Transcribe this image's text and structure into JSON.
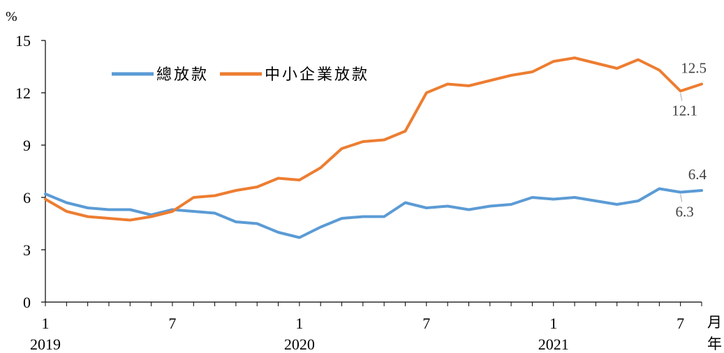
{
  "chart_data": {
    "type": "line",
    "ylabel": "%",
    "ylim": [
      0,
      15
    ],
    "yticks": [
      "0",
      "3",
      "6",
      "9",
      "12",
      "15"
    ],
    "x_month_label": "月",
    "x_year_label": "年",
    "x_month_ticks": [
      {
        "index": 0,
        "label": "1"
      },
      {
        "index": 6,
        "label": "7"
      },
      {
        "index": 12,
        "label": "1"
      },
      {
        "index": 18,
        "label": "7"
      },
      {
        "index": 24,
        "label": "1"
      },
      {
        "index": 30,
        "label": "7"
      }
    ],
    "x_year_ticks": [
      {
        "index": 0,
        "label": "2019"
      },
      {
        "index": 12,
        "label": "2020"
      },
      {
        "index": 24,
        "label": "2021"
      }
    ],
    "legend_position": "top-left",
    "grid": false,
    "x": [
      "2019-01",
      "2019-02",
      "2019-03",
      "2019-04",
      "2019-05",
      "2019-06",
      "2019-07",
      "2019-08",
      "2019-09",
      "2019-10",
      "2019-11",
      "2019-12",
      "2020-01",
      "2020-02",
      "2020-03",
      "2020-04",
      "2020-05",
      "2020-06",
      "2020-07",
      "2020-08",
      "2020-09",
      "2020-10",
      "2020-11",
      "2020-12",
      "2021-01",
      "2021-02",
      "2021-03",
      "2021-04",
      "2021-05",
      "2021-06",
      "2021-07",
      "2021-08"
    ],
    "series": [
      {
        "name": "總放款",
        "color": "#5B9BD5",
        "values": [
          6.2,
          5.7,
          5.4,
          5.3,
          5.3,
          5.0,
          5.3,
          5.2,
          5.1,
          4.6,
          4.5,
          4.0,
          3.7,
          4.3,
          4.8,
          4.9,
          4.9,
          5.7,
          5.4,
          5.5,
          5.3,
          5.5,
          5.6,
          6.0,
          5.9,
          6.0,
          5.8,
          5.6,
          5.8,
          6.5,
          6.3,
          6.4
        ]
      },
      {
        "name": "中小企業放款",
        "color": "#ED7D31",
        "values": [
          5.9,
          5.2,
          4.9,
          4.8,
          4.7,
          4.9,
          5.2,
          6.0,
          6.1,
          6.4,
          6.6,
          7.1,
          7.0,
          7.7,
          8.8,
          9.2,
          9.3,
          9.8,
          12.0,
          12.5,
          12.4,
          12.7,
          13.0,
          13.2,
          13.8,
          14.0,
          13.7,
          13.4,
          13.9,
          13.3,
          12.1,
          12.5
        ]
      }
    ],
    "annotations": [
      {
        "series": 0,
        "index": 31,
        "text": "6.4",
        "pos": "above"
      },
      {
        "series": 0,
        "index": 30,
        "text": "6.3",
        "pos": "below"
      },
      {
        "series": 1,
        "index": 31,
        "text": "12.5",
        "pos": "above"
      },
      {
        "series": 1,
        "index": 30,
        "text": "12.1",
        "pos": "below"
      }
    ]
  }
}
